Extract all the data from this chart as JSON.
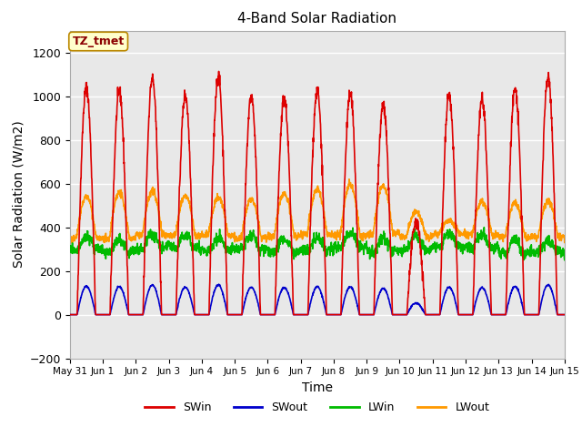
{
  "title": "4-Band Solar Radiation",
  "xlabel": "Time",
  "ylabel": "Solar Radiation (W/m2)",
  "ylim": [
    -200,
    1300
  ],
  "yticks": [
    -200,
    0,
    200,
    400,
    600,
    800,
    1000,
    1200
  ],
  "legend_label": "TZ_tmet",
  "series": {
    "SWin": {
      "color": "#dd0000",
      "lw": 1.2
    },
    "SWout": {
      "color": "#0000cc",
      "lw": 1.2
    },
    "LWin": {
      "color": "#00bb00",
      "lw": 1.2
    },
    "LWout": {
      "color": "#ff9900",
      "lw": 1.2
    }
  },
  "bg_color": "#ffffff",
  "plot_bg": "#e8e8e8",
  "grid_color": "#ffffff",
  "xtick_labels": [
    "May 31",
    "Jun 1",
    "Jun 2",
    "Jun 3",
    "Jun 4",
    "Jun 5",
    "Jun 6",
    "Jun 7",
    "Jun 8",
    "Jun 9",
    "Jun 10",
    "Jun 11",
    "Jun 12",
    "Jun 13",
    "Jun 14",
    "Jun 15"
  ],
  "annotation_box_color": "#ffffcc",
  "annotation_box_edge": "#bb8800"
}
